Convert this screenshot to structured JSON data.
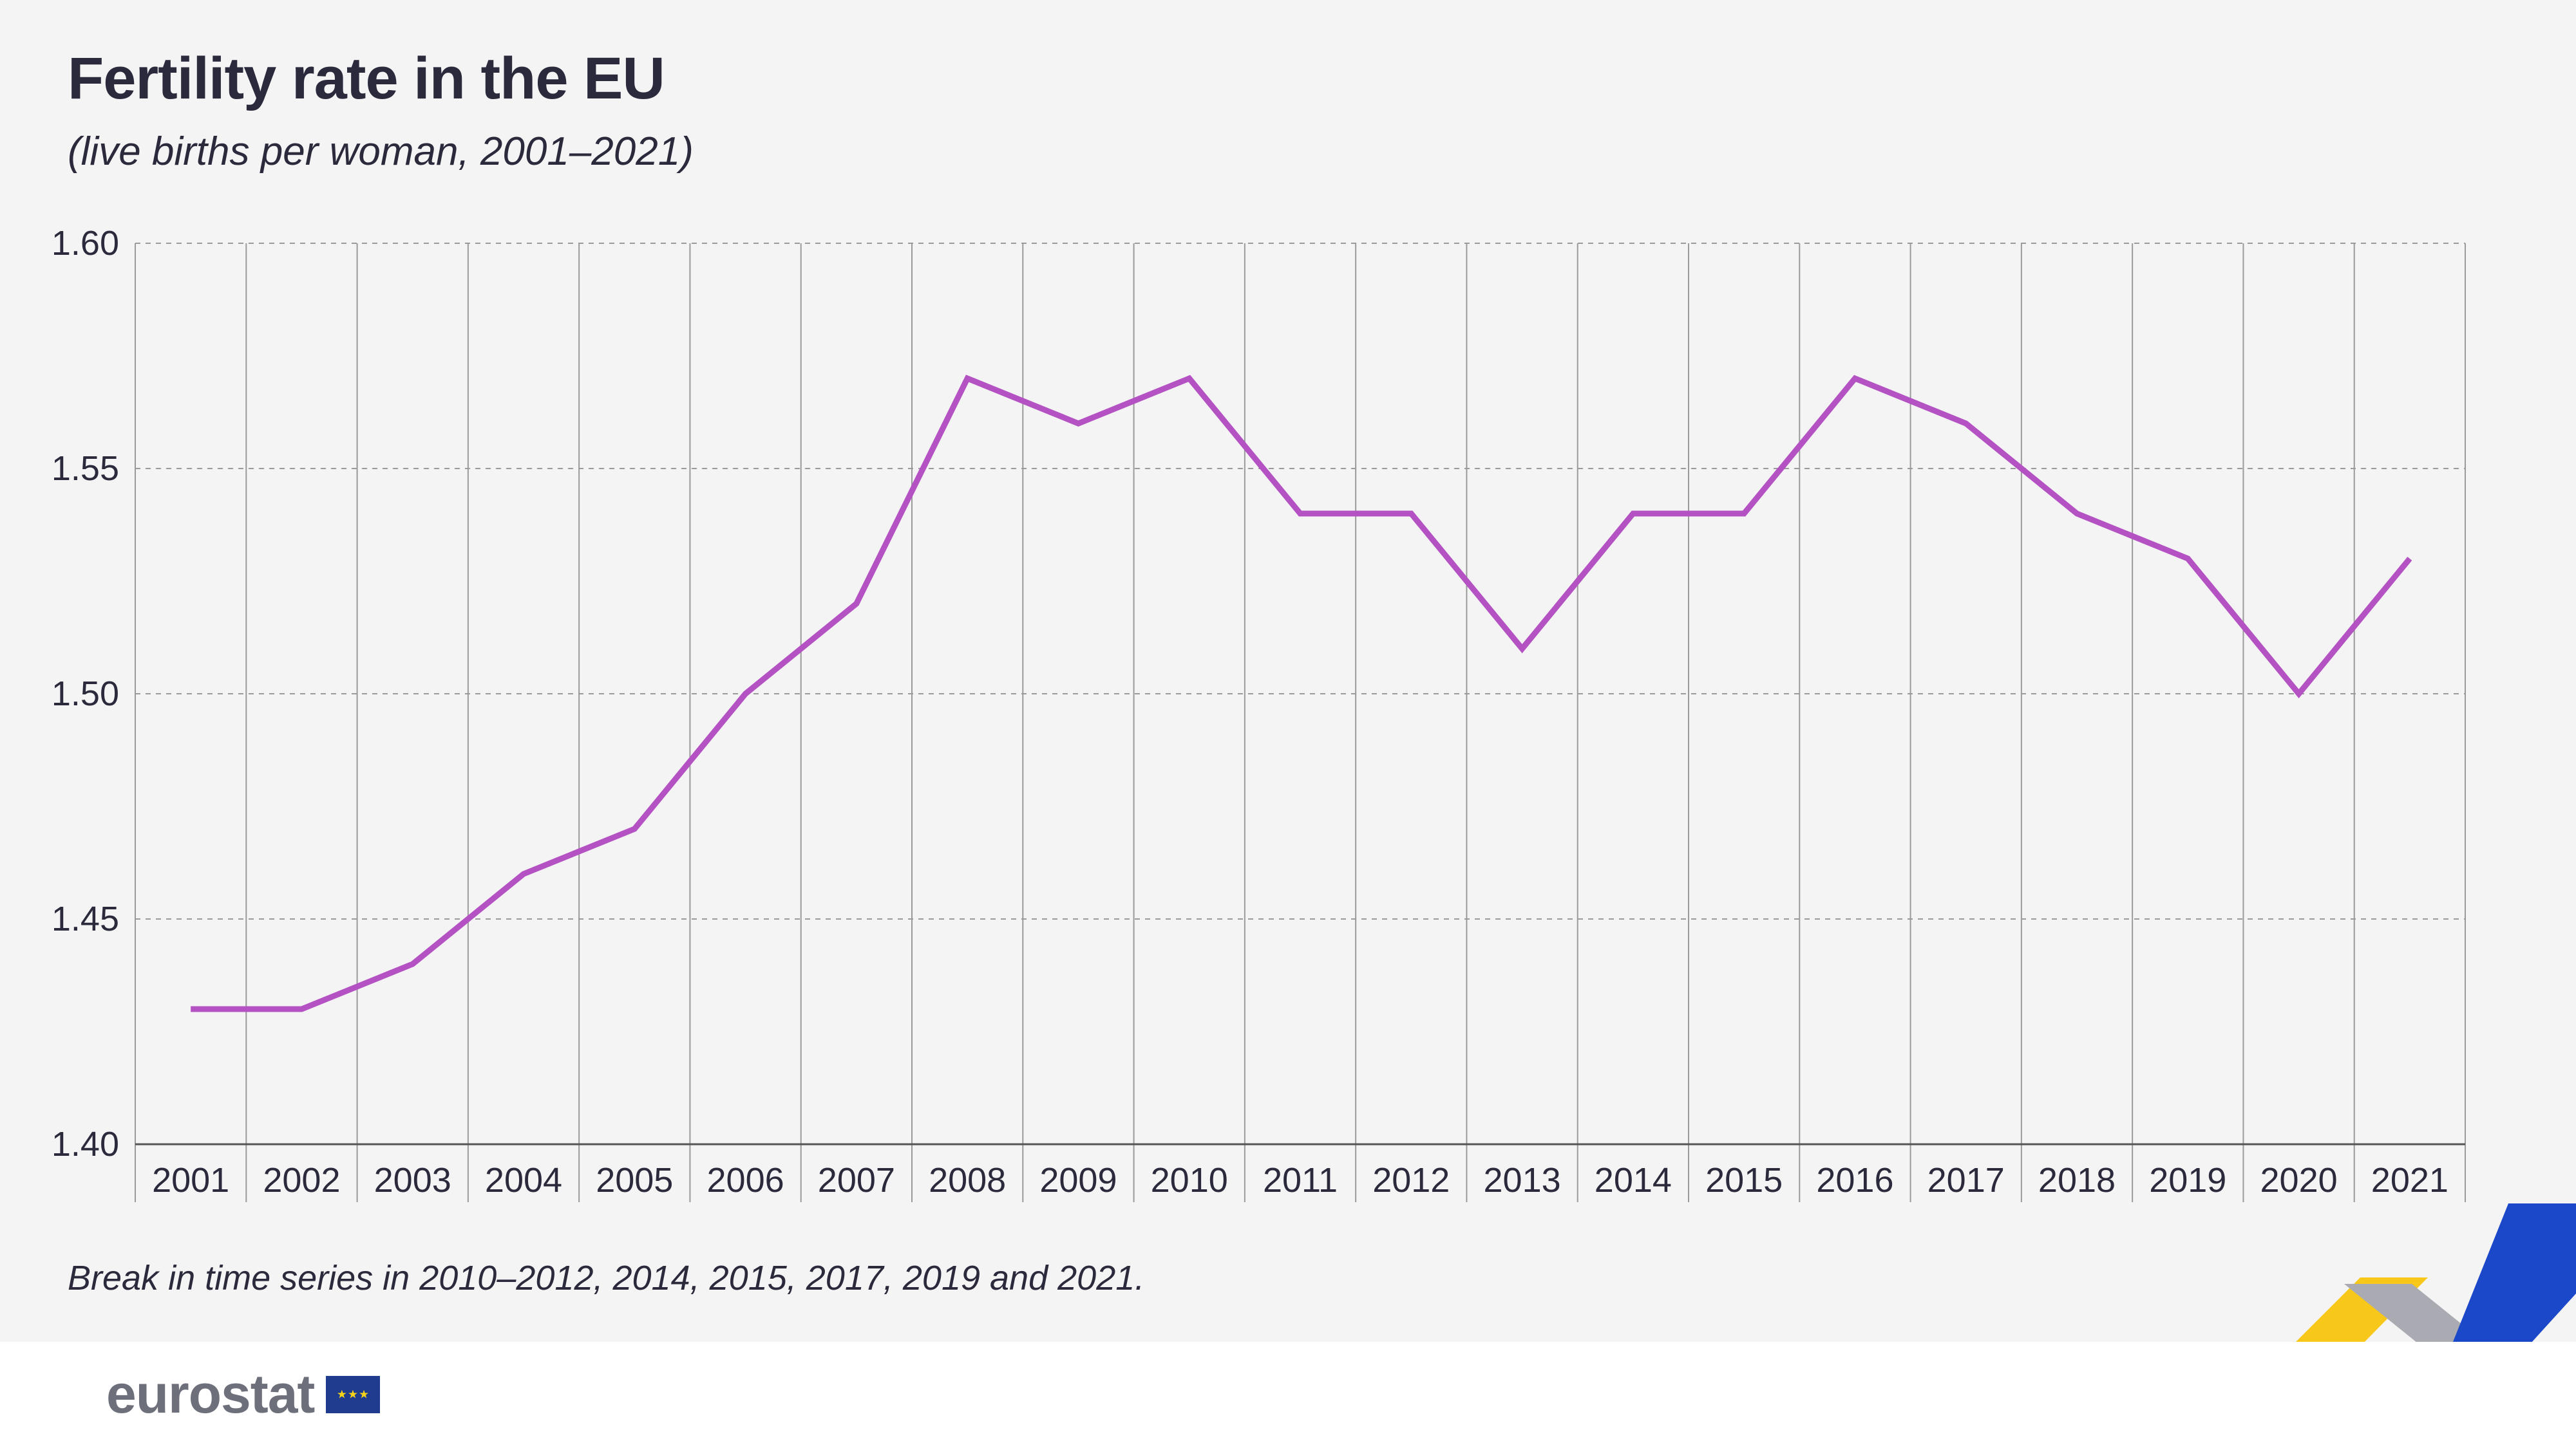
{
  "title": "Fertility rate in the EU",
  "subtitle": "(live births per woman, 2001–2021)",
  "footnote": "Break in time series in 2010–2012, 2014, 2015, 2017, 2019 and 2021.",
  "logo": {
    "text": "eurostat",
    "flag_icon": "eu-flag-icon"
  },
  "colors": {
    "line": "#b452c4",
    "background": "#f4f4f4",
    "text": "#2a2a3c",
    "grid": "#aaaaaa"
  },
  "chart_data": {
    "type": "line",
    "title": "Fertility rate in the EU",
    "subtitle": "(live births per woman, 2001–2021)",
    "xlabel": "",
    "ylabel": "",
    "x": [
      "2001",
      "2002",
      "2003",
      "2004",
      "2005",
      "2006",
      "2007",
      "2008",
      "2009",
      "2010",
      "2011",
      "2012",
      "2013",
      "2014",
      "2015",
      "2016",
      "2017",
      "2018",
      "2019",
      "2020",
      "2021"
    ],
    "series": [
      {
        "values": [
          1.43,
          1.43,
          1.44,
          1.46,
          1.47,
          1.5,
          1.52,
          1.57,
          1.56,
          1.57,
          1.54,
          1.54,
          1.51,
          1.54,
          1.54,
          1.57,
          1.56,
          1.54,
          1.53,
          1.5,
          1.53
        ]
      }
    ],
    "ylim": [
      1.4,
      1.6
    ],
    "yticks": [
      "1.40",
      "1.45",
      "1.50",
      "1.55",
      "1.60"
    ],
    "grid": "horizontal dashed, vertical solid",
    "legend": "none"
  }
}
